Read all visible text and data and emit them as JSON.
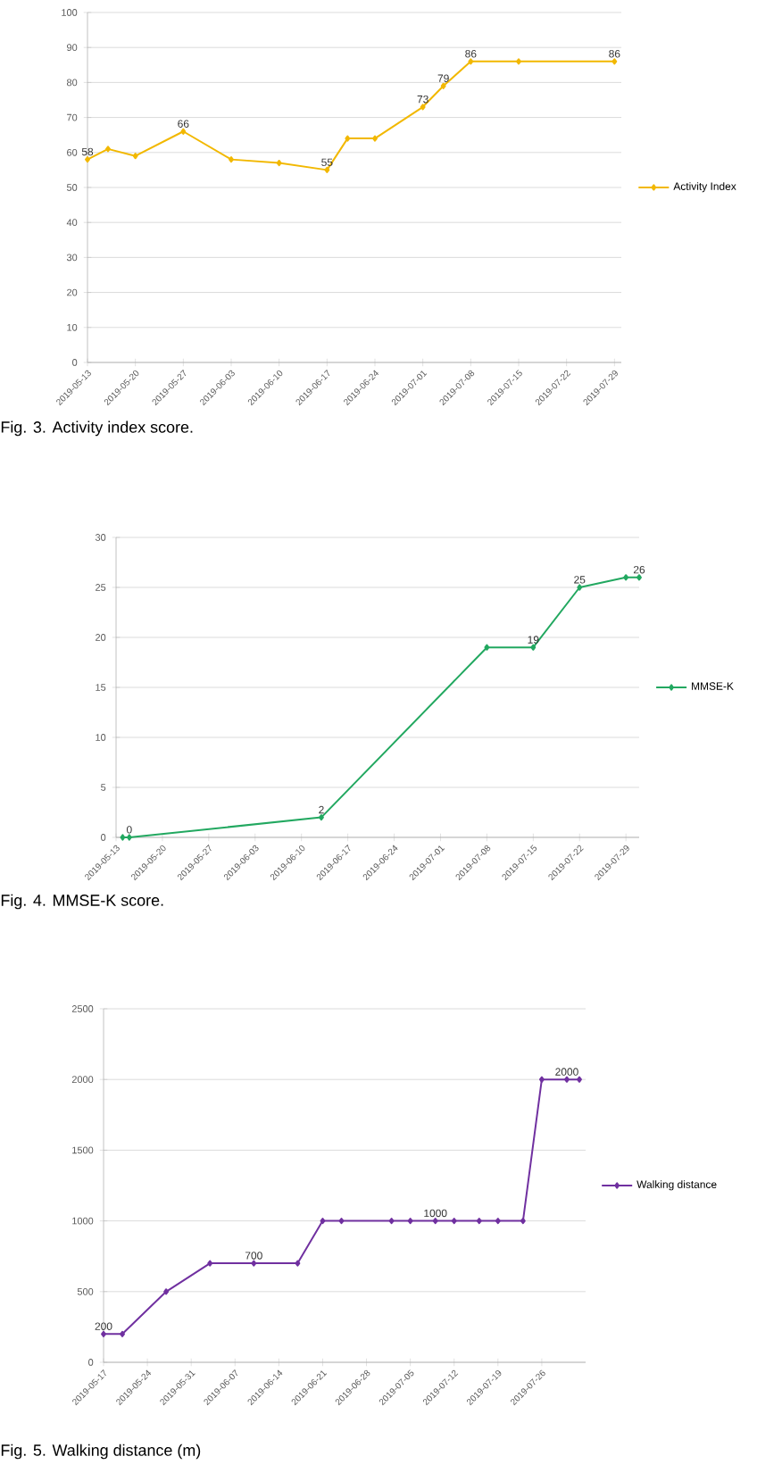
{
  "chart_data": [
    {
      "type": "line",
      "xlim": [
        "2019-05-13",
        "2019-07-30"
      ],
      "xticks": [
        "2019-05-13",
        "2019-05-20",
        "2019-05-27",
        "2019-06-03",
        "2019-06-10",
        "2019-06-17",
        "2019-06-24",
        "2019-07-01",
        "2019-07-08",
        "2019-07-15",
        "2019-07-22",
        "2019-07-29"
      ],
      "ylim": [
        0,
        100
      ],
      "yticks": [
        0,
        10,
        20,
        30,
        40,
        50,
        60,
        70,
        80,
        90,
        100
      ],
      "grid": "y",
      "legend": "right",
      "marker": "diamond",
      "annotations": [
        "Fig. 3. Activity index score."
      ],
      "series": [
        {
          "name": "Activity Index",
          "color": "#f2b800",
          "x": [
            "2019-05-13",
            "2019-05-16",
            "2019-05-20",
            "2019-05-27",
            "2019-06-03",
            "2019-06-10",
            "2019-06-17",
            "2019-06-20",
            "2019-06-24",
            "2019-07-01",
            "2019-07-04",
            "2019-07-08",
            "2019-07-15",
            "2019-07-29"
          ],
          "values": [
            58,
            61,
            59,
            66,
            58,
            57,
            55,
            64,
            64,
            73,
            79,
            86,
            86,
            86
          ],
          "value_labels": [
            "58",
            null,
            null,
            "66",
            null,
            null,
            "55",
            null,
            null,
            "73",
            "79",
            "86",
            null,
            "86"
          ]
        }
      ]
    },
    {
      "type": "line",
      "xlim": [
        "2019-05-13",
        "2019-07-31"
      ],
      "xticks": [
        "2019-05-13",
        "2019-05-20",
        "2019-05-27",
        "2019-06-03",
        "2019-06-10",
        "2019-06-17",
        "2019-06-24",
        "2019-07-01",
        "2019-07-08",
        "2019-07-15",
        "2019-07-22",
        "2019-07-29"
      ],
      "ylim": [
        0,
        30
      ],
      "yticks": [
        0,
        5,
        10,
        15,
        20,
        25,
        30
      ],
      "grid": "y",
      "legend": "right",
      "marker": "diamond",
      "annotations": [
        "Fig. 4. MMSE-K score."
      ],
      "series": [
        {
          "name": "MMSE-K",
          "color": "#22a860",
          "x": [
            "2019-05-14",
            "2019-05-15",
            "2019-06-13",
            "2019-07-08",
            "2019-07-15",
            "2019-07-22",
            "2019-07-29",
            "2019-07-31"
          ],
          "values": [
            0,
            0,
            2,
            19,
            19,
            25,
            26,
            26
          ],
          "value_labels": [
            null,
            "0",
            "2",
            null,
            "19",
            "25",
            null,
            "26"
          ]
        }
      ]
    },
    {
      "type": "line",
      "xlim": [
        "2019-05-17",
        "2019-08-02"
      ],
      "xticks": [
        "2019-05-17",
        "2019-05-24",
        "2019-05-31",
        "2019-06-07",
        "2019-06-14",
        "2019-06-21",
        "2019-06-28",
        "2019-07-05",
        "2019-07-12",
        "2019-07-19",
        "2019-07-26"
      ],
      "ylim": [
        0,
        2500
      ],
      "yticks": [
        0,
        500,
        1000,
        1500,
        2000,
        2500
      ],
      "grid": "y",
      "legend": "right",
      "marker": "diamond",
      "annotations": [
        "Fig. 5. Walking distance (m)"
      ],
      "series": [
        {
          "name": "Walking distance",
          "color": "#7030a0",
          "x": [
            "2019-05-17",
            "2019-05-20",
            "2019-05-27",
            "2019-06-03",
            "2019-06-10",
            "2019-06-17",
            "2019-06-21",
            "2019-06-24",
            "2019-07-02",
            "2019-07-05",
            "2019-07-09",
            "2019-07-12",
            "2019-07-16",
            "2019-07-19",
            "2019-07-23",
            "2019-07-26",
            "2019-07-30",
            "2019-08-01"
          ],
          "values": [
            200,
            200,
            500,
            700,
            700,
            700,
            1000,
            1000,
            1000,
            1000,
            1000,
            1000,
            1000,
            1000,
            1000,
            2000,
            2000,
            2000
          ],
          "value_labels": [
            "200",
            null,
            null,
            null,
            "700",
            null,
            null,
            null,
            null,
            null,
            "1000",
            null,
            null,
            null,
            null,
            null,
            "2000",
            null
          ]
        }
      ]
    }
  ]
}
